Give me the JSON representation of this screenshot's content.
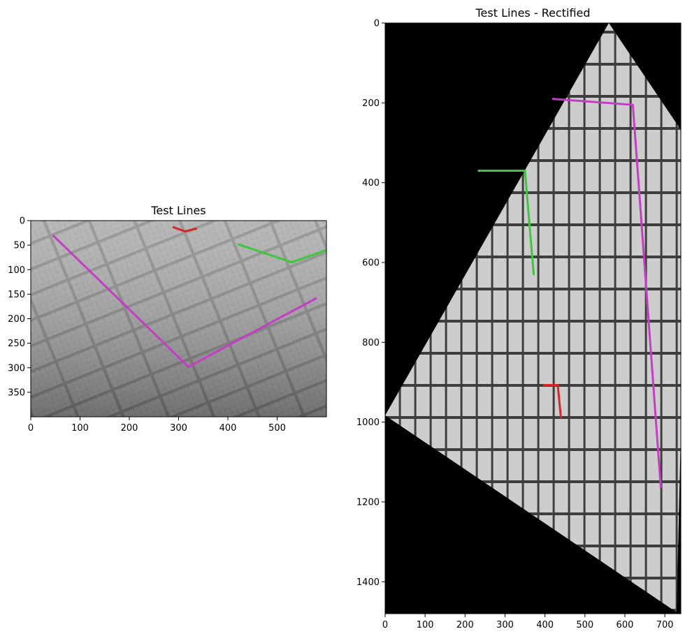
{
  "colors": {
    "red": "#d62728",
    "green": "#2ca02c",
    "magenta": "#c43ec4",
    "black": "#000000"
  },
  "chart_data": [
    {
      "type": "image",
      "title": "Test Lines",
      "xlim": [
        0,
        600
      ],
      "ylim": [
        400,
        0
      ],
      "xticks": [
        "0",
        "100",
        "200",
        "300",
        "400",
        "500"
      ],
      "yticks": [
        "0",
        "50",
        "100",
        "150",
        "200",
        "250",
        "300",
        "350"
      ],
      "series": [
        {
          "color": "#d62728",
          "points": [
            [
              288,
              13
            ],
            [
              313,
              22
            ],
            [
              337,
              16
            ]
          ]
        },
        {
          "color": "#3ec63e",
          "points": [
            [
              420,
              48
            ],
            [
              530,
              85
            ],
            [
              600,
              60
            ]
          ]
        },
        {
          "color": "#c43ec4",
          "points": [
            [
              45,
              30
            ],
            [
              320,
              298
            ],
            [
              580,
              158
            ]
          ]
        }
      ]
    },
    {
      "type": "image",
      "title": "Test Lines - Rectified",
      "xlim": [
        0,
        740
      ],
      "ylim": [
        1480,
        0
      ],
      "xticks": [
        "0",
        "100",
        "200",
        "300",
        "400",
        "500",
        "600",
        "700"
      ],
      "yticks": [
        "0",
        "200",
        "400",
        "600",
        "800",
        "1000",
        "1200",
        "1400"
      ],
      "series": [
        {
          "color": "#d62728",
          "points": [
            [
              395,
              907
            ],
            [
              432,
              907
            ],
            [
              440,
              990
            ]
          ]
        },
        {
          "color": "#3ec63e",
          "points": [
            [
              232,
              370
            ],
            [
              350,
              370
            ],
            [
              372,
              632
            ]
          ]
        },
        {
          "color": "#c43ec4",
          "points": [
            [
              418,
              190
            ],
            [
              620,
              205
            ],
            [
              690,
              1165
            ]
          ]
        }
      ]
    }
  ]
}
